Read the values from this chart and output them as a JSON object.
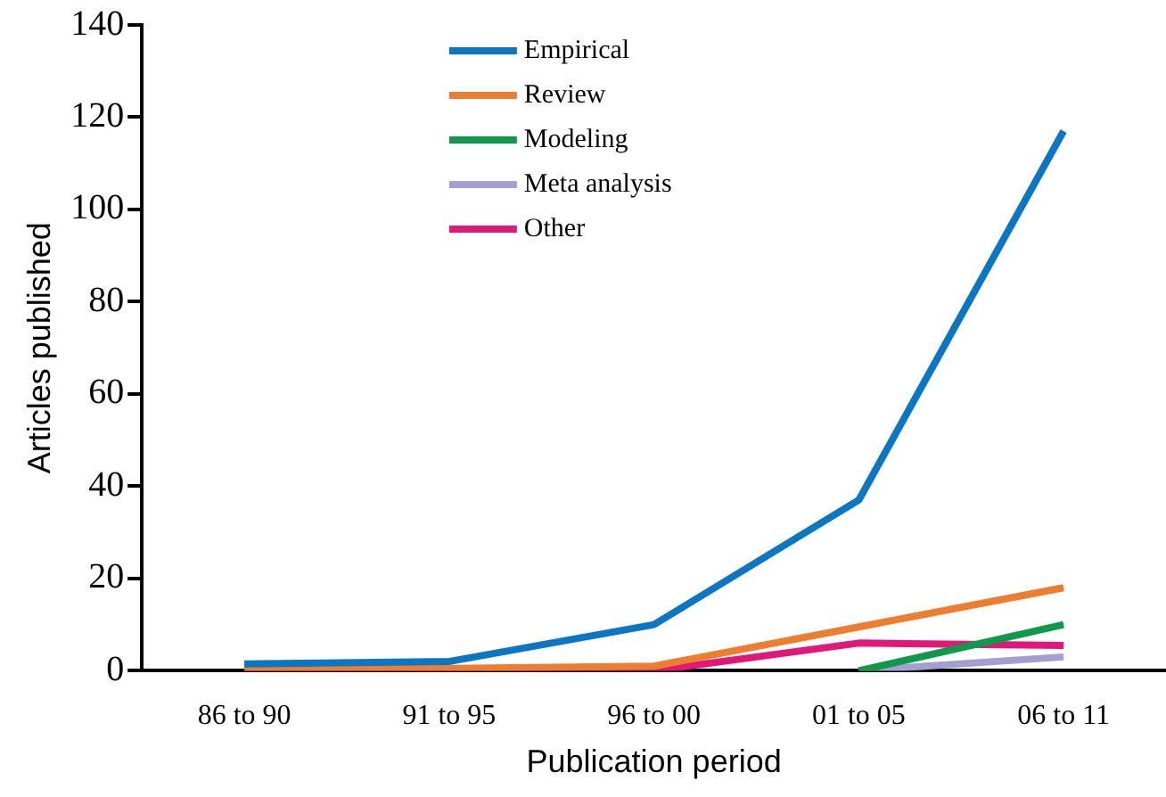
{
  "chart_data": {
    "type": "line",
    "xlabel": "Publication period",
    "ylabel": "Articles published",
    "categories": [
      "86 to 90",
      "91 to 95",
      "96 to 00",
      "01 to 05",
      "06 to 11"
    ],
    "series": [
      {
        "name": "Empirical",
        "color": "#0b77c4",
        "values": [
          1.5,
          2,
          10,
          37,
          117
        ]
      },
      {
        "name": "Review",
        "color": "#ed7d2f",
        "values": [
          0.5,
          0.5,
          1,
          9.5,
          18
        ]
      },
      {
        "name": "Modeling",
        "color": "#0e9a4a",
        "values": [
          null,
          null,
          null,
          0,
          10
        ]
      },
      {
        "name": "Meta analysis",
        "color": "#a59fd1",
        "values": [
          null,
          null,
          null,
          0,
          3
        ]
      },
      {
        "name": "Other",
        "color": "#e0187a",
        "values": [
          0,
          0,
          0,
          6,
          5.5
        ]
      }
    ],
    "ylim": [
      0,
      140
    ],
    "yticks": [
      0,
      20,
      40,
      60,
      80,
      100,
      120,
      140
    ],
    "grid": false,
    "legend": "top left",
    "marker": "none",
    "line_style": "solid"
  }
}
